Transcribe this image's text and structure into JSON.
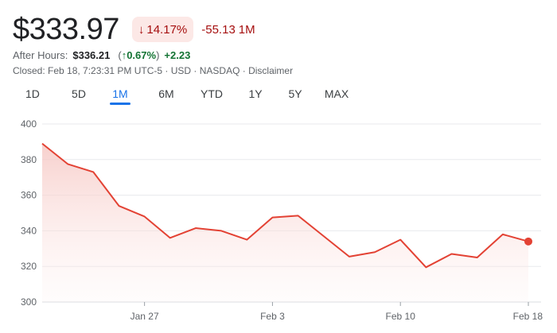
{
  "quote": {
    "price": "$333.97",
    "change_pct": "14.17%",
    "change_abs": "-55.13",
    "change_period": "1M"
  },
  "after_hours": {
    "label": "After Hours:",
    "price": "$336.21",
    "pct": "0.67%",
    "abs": "+2.23"
  },
  "meta": {
    "text": "Closed: Feb 18, 7:23:31 PM UTC-5 · USD · NASDAQ · Disclaimer"
  },
  "tabs": [
    {
      "label": "1D"
    },
    {
      "label": "5D"
    },
    {
      "label": "1M"
    },
    {
      "label": "6M"
    },
    {
      "label": "YTD"
    },
    {
      "label": "1Y"
    },
    {
      "label": "5Y"
    },
    {
      "label": "MAX"
    }
  ],
  "active_tab": "1M",
  "colors": {
    "line": "#e34234",
    "fill_top": "#f6c8c4",
    "grid": "#e8eaed",
    "negative": "#a50e0e",
    "positive": "#137333",
    "accent": "#1a73e8"
  },
  "chart_data": {
    "type": "area",
    "ylim": [
      300,
      400
    ],
    "y_ticks": [
      300,
      320,
      340,
      360,
      380,
      400
    ],
    "x_ticks": [
      {
        "label": "Jan 27",
        "index": 4
      },
      {
        "label": "Feb 3",
        "index": 9
      },
      {
        "label": "Feb 10",
        "index": 14
      },
      {
        "label": "Feb 18",
        "index": 19
      }
    ],
    "values": [
      389,
      377.5,
      373,
      354,
      348,
      336,
      341.5,
      340,
      335,
      347.5,
      348.5,
      337,
      325.5,
      328,
      335,
      319.5,
      327,
      325,
      338,
      334
    ]
  }
}
